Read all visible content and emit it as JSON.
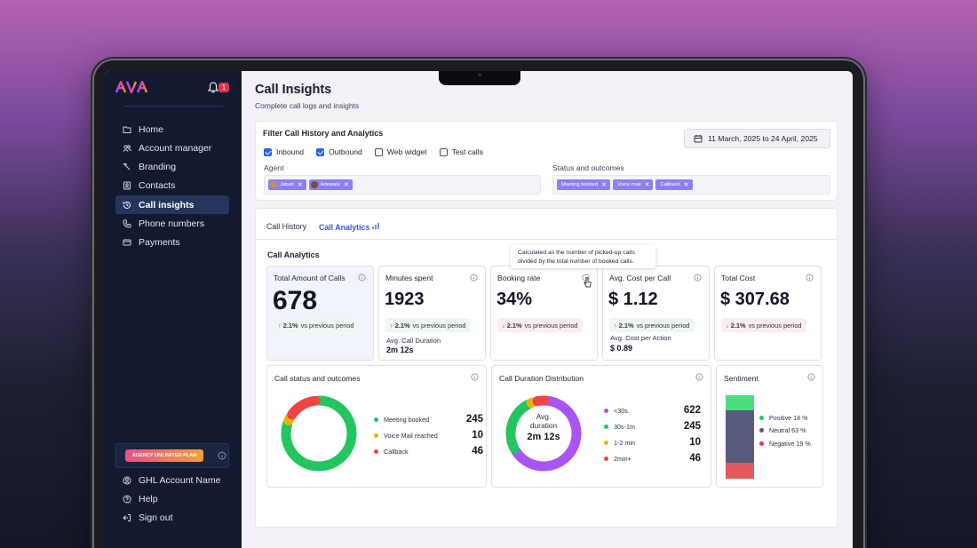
{
  "sidebar": {
    "notification_count": "1",
    "items": [
      {
        "label": "Home",
        "icon": "folder-icon"
      },
      {
        "label": "Account manager",
        "icon": "users-icon"
      },
      {
        "label": "Branding",
        "icon": "brush-icon"
      },
      {
        "label": "Contacts",
        "icon": "contacts-icon"
      },
      {
        "label": "Call insights",
        "icon": "history-icon"
      },
      {
        "label": "Phone numbers",
        "icon": "phone-icon"
      },
      {
        "label": "Payments",
        "icon": "card-icon"
      }
    ],
    "plan_badge": "AGENCY UNLIMITED PLAN",
    "bottom_items": [
      {
        "label": "GHL Account Name",
        "icon": "account-icon"
      },
      {
        "label": "Help",
        "icon": "help-icon"
      },
      {
        "label": "Sign out",
        "icon": "signout-icon"
      }
    ]
  },
  "page": {
    "title": "Call Insights",
    "subtitle": "Complete call logs and insights"
  },
  "filter": {
    "title": "Filter Call History and Analytics",
    "date_range": "11 March, 2025 to 24 April, 2025",
    "checkboxes": [
      {
        "label": "Inbound",
        "checked": true
      },
      {
        "label": "Outbound",
        "checked": true
      },
      {
        "label": "Web widget",
        "checked": false
      },
      {
        "label": "Test calls",
        "checked": false
      }
    ],
    "agent_label": "Agent",
    "agents": [
      "Jabari",
      "Adewale"
    ],
    "status_label": "Status and outcomes",
    "statuses": [
      "Meeting booked",
      "Voice mail",
      "Callback"
    ]
  },
  "tabs": [
    {
      "label": "Call History"
    },
    {
      "label": "Call Analytics"
    }
  ],
  "analytics": {
    "section_title": "Call Analytics",
    "tooltip": [
      "Calculated as the number of picked-up calls",
      "divided by the total number of booked calls."
    ],
    "metrics": [
      {
        "label": "Total Amount of Calls",
        "value": "678",
        "delta": "2.1%",
        "delta_text": "vs previous period",
        "direction": "up"
      },
      {
        "label": "Minutes spent",
        "value": "1923",
        "delta": "2.1%",
        "delta_text": "vs previous period",
        "direction": "up",
        "sub_label": "Avg. Call Duration",
        "sub_value": "2m 12s"
      },
      {
        "label": "Booking rate",
        "value": "34%",
        "delta": "2.1%",
        "delta_text": "vs previous period",
        "direction": "down"
      },
      {
        "label": "Avg. Cost per Call",
        "value": "$ 1.12",
        "delta": "2.1%",
        "delta_text": "vs previous period",
        "direction": "up",
        "sub_label": "Avg. Cost per Action",
        "sub_value": "$ 0.89"
      },
      {
        "label": "Total Cost",
        "value": "$ 307.68",
        "delta": "2.1%",
        "delta_text": "vs previous period",
        "direction": "down"
      }
    ],
    "status_panel": {
      "title": "Call status and outcomes",
      "items": [
        {
          "label": "Meeting booked",
          "value": "245",
          "color": "#22c55e"
        },
        {
          "label": "Voice Mail reached",
          "value": "10",
          "color": "#eab308"
        },
        {
          "label": "Callback",
          "value": "46",
          "color": "#ef4444"
        }
      ]
    },
    "duration_panel": {
      "title": "Call Duration Distribution",
      "center_label": [
        "Avg.",
        "duration"
      ],
      "center_value": "2m 12s",
      "items": [
        {
          "label": "<30s",
          "value": "622",
          "color": "#a855f7"
        },
        {
          "label": "30s-1m",
          "value": "245",
          "color": "#22c55e"
        },
        {
          "label": "1-2 min",
          "value": "10",
          "color": "#eab308"
        },
        {
          "label": "2min+",
          "value": "46",
          "color": "#ef4444"
        }
      ]
    },
    "sentiment_panel": {
      "title": "Sentiment",
      "items": [
        {
          "label": "Positive 18 %",
          "fraction": 0.18,
          "color": "#4ade80"
        },
        {
          "label": "Neutral 63 %",
          "fraction": 0.63,
          "color": "#575a7d"
        },
        {
          "label": "Negative 19 %",
          "fraction": 0.19,
          "color": "#e05a5f"
        }
      ]
    }
  },
  "colors": {
    "sidebar_bg": "#131a30",
    "accent": "#3a54d8",
    "chip": "#8b80f0",
    "positive": "#22a55a",
    "negative": "#e0334f"
  }
}
